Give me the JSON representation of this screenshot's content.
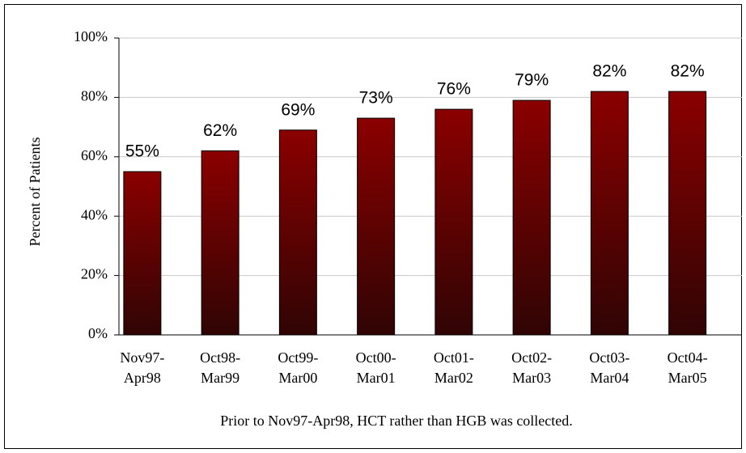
{
  "chart_data": {
    "type": "bar",
    "ylabel": "Percent of Patients",
    "note": "Prior to Nov97-Apr98, HCT rather than HGB was collected.",
    "categories": [
      "Nov97-\nApr98",
      "Oct98-\nMar99",
      "Oct99-\nMar00",
      "Oct00-\nMar01",
      "Oct01-\nMar02",
      "Oct02-\nMar03",
      "Oct03-\nMar04",
      "Oct04-\nMar05"
    ],
    "values": [
      55,
      62,
      69,
      73,
      76,
      79,
      82,
      82
    ],
    "value_labels": [
      "55%",
      "62%",
      "69%",
      "73%",
      "76%",
      "79%",
      "82%",
      "82%"
    ],
    "color": "#8b0000",
    "ylim": [
      0,
      100
    ],
    "yticks": [
      {
        "value": 0,
        "label": "0%"
      },
      {
        "value": 20,
        "label": "20%"
      },
      {
        "value": 40,
        "label": "40%"
      },
      {
        "value": 60,
        "label": "60%"
      },
      {
        "value": 80,
        "label": "80%"
      },
      {
        "value": 100,
        "label": "100%"
      }
    ],
    "grid": true
  }
}
